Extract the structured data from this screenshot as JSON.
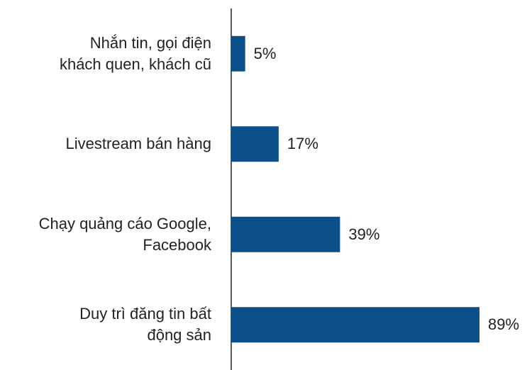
{
  "chart_data": {
    "type": "bar",
    "orientation": "horizontal",
    "categories": [
      "Nhắn tin, gọi điện\nkhách quen, khách cũ",
      "Livestream bán hàng",
      "Chạy quảng cáo Google,\nFacebook",
      "Duy trì đăng tin bất\nđộng sản"
    ],
    "values": [
      5,
      17,
      39,
      89
    ],
    "value_labels": [
      "5%",
      "17%",
      "39%",
      "89%"
    ],
    "color": "#0b4f8a"
  }
}
